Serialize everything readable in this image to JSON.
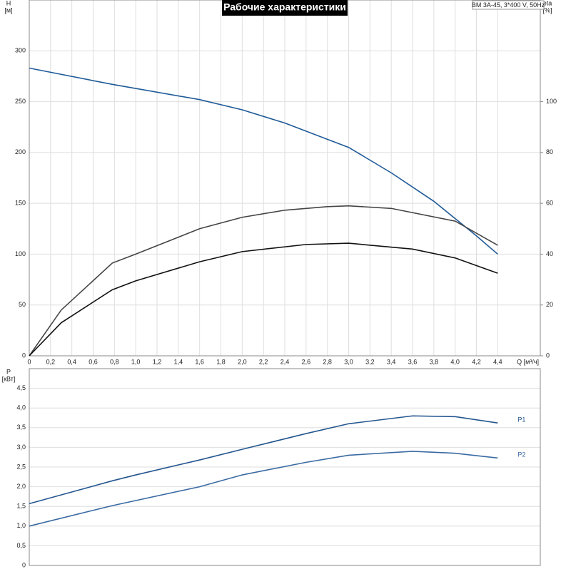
{
  "chart_data": [
    {
      "type": "line",
      "title": "Рабочие характеристики",
      "annotation": "BM 3A-45, 3*400 V, 50Hz",
      "ylabel": [
        "H",
        "[м]"
      ],
      "y2label": [
        "eta",
        "[%]"
      ],
      "xlabel": "Q [м³/ч]",
      "xlim": [
        0,
        4.8
      ],
      "ylim": [
        0,
        350
      ],
      "y2lim": [
        0,
        140
      ],
      "grid": true,
      "xticks": [
        0,
        {
          "value": 0.2,
          "label": "0,2"
        },
        {
          "value": 0.4,
          "label": "0,4"
        },
        {
          "value": 0.6,
          "label": "0,6"
        },
        {
          "value": 0.8,
          "label": "0,8"
        },
        {
          "value": 1.0,
          "label": "1,0"
        },
        {
          "value": 1.2,
          "label": "1,2"
        },
        {
          "value": 1.4,
          "label": "1,4"
        },
        {
          "value": 1.6,
          "label": "1,6"
        },
        {
          "value": 1.8,
          "label": "1,8"
        },
        {
          "value": 2.0,
          "label": "2,0"
        },
        {
          "value": 2.2,
          "label": "2,2"
        },
        {
          "value": 2.4,
          "label": "2,4"
        },
        {
          "value": 2.6,
          "label": "2,6"
        },
        {
          "value": 2.8,
          "label": "2,8"
        },
        {
          "value": 3.0,
          "label": "3,0"
        },
        {
          "value": 3.2,
          "label": "3,2"
        },
        {
          "value": 3.4,
          "label": "3,4"
        },
        {
          "value": 3.6,
          "label": "3,6"
        },
        {
          "value": 3.8,
          "label": "3,8"
        },
        {
          "value": 4.0,
          "label": "4,0"
        },
        {
          "value": 4.2,
          "label": "4,2"
        },
        {
          "value": 4.4,
          "label": "4,4"
        }
      ],
      "yticks": [
        0,
        50,
        100,
        150,
        200,
        250,
        300
      ],
      "y2ticks": [
        0,
        20,
        40,
        60,
        80,
        100
      ],
      "series": [
        {
          "color": "#1f5a98",
          "x": [
            0,
            0.78,
            1.0,
            1.6,
            2.0,
            2.4,
            2.8,
            3.0,
            3.4,
            3.8,
            4.0,
            4.2,
            4.4
          ],
          "values": [
            283,
            267,
            263,
            252,
            242,
            229,
            213,
            205,
            180,
            152,
            135,
            118,
            100
          ]
        },
        {
          "color": "#444444",
          "axis": "y2",
          "x": [
            0,
            0.3,
            0.78,
            1.0,
            1.6,
            2.0,
            2.4,
            2.8,
            3.0,
            3.4,
            4.0,
            4.4
          ],
          "values": [
            0,
            18,
            36.5,
            40,
            50,
            54.5,
            57.3,
            58.7,
            59,
            58,
            53,
            43.5
          ]
        },
        {
          "color": "#111111",
          "axis": "y2",
          "x": [
            0,
            0.3,
            0.78,
            1.0,
            1.6,
            2.0,
            2.6,
            3.0,
            3.6,
            4.0,
            4.4
          ],
          "values": [
            0,
            13,
            26,
            29.5,
            37,
            41,
            43.8,
            44.3,
            42,
            38.5,
            32.5
          ]
        }
      ]
    },
    {
      "type": "line",
      "ylabel": [
        "P",
        "[кВт]"
      ],
      "xlim": [
        0,
        4.8
      ],
      "ylim": [
        0,
        5
      ],
      "grid": true,
      "yticks": [
        0,
        {
          "value": 0.5,
          "label": "0,5"
        },
        {
          "value": 1.0,
          "label": "1,0"
        },
        {
          "value": 1.5,
          "label": "1,5"
        },
        {
          "value": 2.0,
          "label": "2,0"
        },
        {
          "value": 2.5,
          "label": "2,5"
        },
        {
          "value": 3.0,
          "label": "3,0"
        },
        {
          "value": 3.5,
          "label": "3,5"
        },
        {
          "value": 4.0,
          "label": "4,0"
        },
        {
          "value": 4.5,
          "label": "4,5"
        }
      ],
      "series": [
        {
          "name": "P1",
          "color": "#24568f",
          "x": [
            0,
            0.78,
            1.0,
            1.6,
            2.0,
            2.6,
            3.0,
            3.6,
            4.0,
            4.4
          ],
          "values": [
            1.57,
            2.15,
            2.3,
            2.68,
            2.95,
            3.35,
            3.6,
            3.8,
            3.78,
            3.62
          ]
        },
        {
          "name": "P2",
          "color": "#3a6aa3",
          "x": [
            0,
            0.78,
            1.6,
            2.0,
            2.6,
            3.0,
            3.6,
            4.0,
            4.4
          ],
          "values": [
            1.0,
            1.52,
            2.0,
            2.3,
            2.62,
            2.8,
            2.9,
            2.85,
            2.73
          ]
        }
      ]
    }
  ]
}
